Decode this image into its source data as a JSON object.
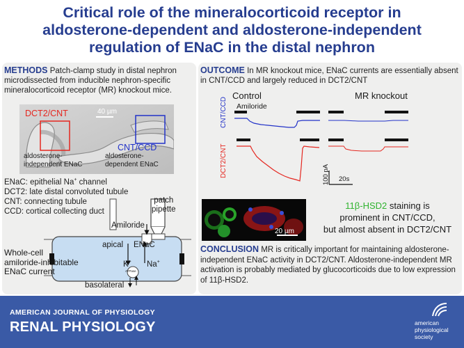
{
  "title": {
    "line1": "Critical role of the mineralocorticoid receptor in",
    "line2": "aldosterone-dependent and aldosterone-independent",
    "line3": "regulation of ENaC in the distal nephron"
  },
  "methods": {
    "heading": "METHODS",
    "text": "Patch-clamp study in distal nephron microdissected from inducible nephron-specific mineralocorticoid receptor (MR) knockout mice.",
    "micrograph": {
      "scale_label": "40 µm",
      "box_left_label": "DCT2/CNT",
      "box_right_label": "CNT/CCD",
      "left_caption_1": "aldosterone-",
      "left_caption_2": "independent ENaC",
      "right_caption_1": "aldosterone-",
      "right_caption_2": "dependent ENaC"
    },
    "glossary": [
      {
        "text": "ENaC: epithelial Na",
        "sup": "+",
        "tail": " channel"
      },
      {
        "text": "DCT2: late distal convoluted tubule",
        "sup": "",
        "tail": ""
      },
      {
        "text": "CNT: connecting tubule",
        "sup": "",
        "tail": ""
      },
      {
        "text": "CCD: cortical collecting duct",
        "sup": "",
        "tail": ""
      }
    ],
    "diagram": {
      "patch_pipette_1": "patch",
      "patch_pipette_2": "pipette",
      "amiloride": "Amiloride",
      "apical": "apical",
      "enac": "ENaC",
      "k": "K",
      "na": "Na",
      "plus": "+",
      "atpase": "ATPase",
      "basolateral": "basolateral",
      "whole_cell_1": "Whole-cell",
      "whole_cell_2": "amiloride-inhibitable",
      "whole_cell_3": "ENaC current"
    }
  },
  "outcome": {
    "heading": "OUTCOME",
    "text": "In MR knockout mice, ENaC currents are essentially absent in CNT/CCD and largely reduced in DCT2/CNT",
    "traces": {
      "control_label": "Control",
      "knockout_label": "MR knockout",
      "amiloride_label": "Amiloride",
      "row1_label": "CNT/CCD",
      "row2_label": "DCT2/CNT",
      "scale_y": "100 pA",
      "scale_x": "20s",
      "color_row1": "#2232c8",
      "color_row2": "#e5261f"
    },
    "stain": {
      "scale_label": "20 µm",
      "highlight": "11β-HSD2",
      "line1_rest": " staining is",
      "line2": "prominent in CNT/CCD,",
      "line3": "but almost absent in DCT2/CNT",
      "highlight_color": "#2fb32f"
    },
    "conclusion_heading": "CONCLUSION",
    "conclusion_text": "MR is critically important for maintaining aldosterone-independent ENaC activity in DCT2/CNT. Aldosterone-independent MR activation is probably mediated by glucocorticoids due to low expression of 11β-HSD2."
  },
  "footer": {
    "journal": "AMERICAN JOURNAL OF PHYSIOLOGY",
    "section": "RENAL PHYSIOLOGY",
    "publisher_1": "american",
    "publisher_2": "physiological",
    "publisher_3": "society",
    "brand_color": "#3a5aa6",
    "title_color": "#263d8f"
  }
}
